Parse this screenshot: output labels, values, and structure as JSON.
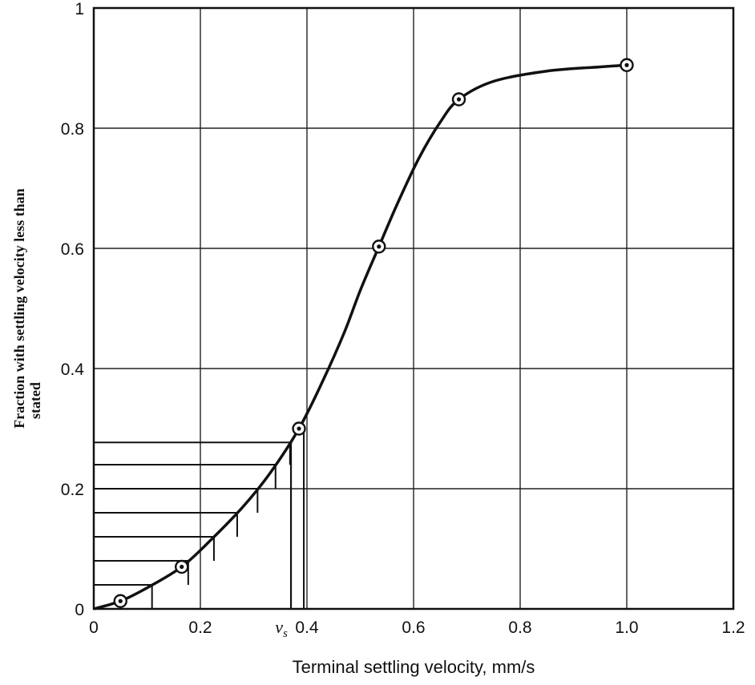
{
  "chart_data": {
    "type": "line",
    "xlabel": "Terminal settling velocity, mm/s",
    "ylabel_line1": "Fraction with settling velocity less than",
    "ylabel_line2": "stated",
    "xlim": [
      0,
      1.2
    ],
    "ylim": [
      0,
      1
    ],
    "x_ticks": [
      {
        "value": 0,
        "label": "0"
      },
      {
        "value": 0.2,
        "label": "0.2"
      },
      {
        "value": 0.4,
        "label": "0.4"
      },
      {
        "value": 0.6,
        "label": "0.6"
      },
      {
        "value": 0.8,
        "label": "0.8"
      },
      {
        "value": 1.0,
        "label": "1.0"
      },
      {
        "value": 1.2,
        "label": "1.2"
      }
    ],
    "y_ticks": [
      {
        "value": 0,
        "label": "0"
      },
      {
        "value": 0.2,
        "label": "0.2"
      },
      {
        "value": 0.4,
        "label": "0.4"
      },
      {
        "value": 0.6,
        "label": "0.6"
      },
      {
        "value": 0.8,
        "label": "0.8"
      },
      {
        "value": 1,
        "label": "1"
      }
    ],
    "grid": true,
    "vs_marker": {
      "value": 0.37,
      "label": "v",
      "subscript": "s"
    },
    "series": [
      {
        "points": [
          {
            "x": 0.05,
            "y": 0.013
          },
          {
            "x": 0.165,
            "y": 0.07
          },
          {
            "x": 0.385,
            "y": 0.3
          },
          {
            "x": 0.535,
            "y": 0.603
          },
          {
            "x": 0.685,
            "y": 0.848
          },
          {
            "x": 1.0,
            "y": 0.905
          }
        ],
        "curve": [
          [
            0.0,
            0.0
          ],
          [
            0.05,
            0.013
          ],
          [
            0.1,
            0.035
          ],
          [
            0.165,
            0.07
          ],
          [
            0.22,
            0.115
          ],
          [
            0.28,
            0.17
          ],
          [
            0.33,
            0.225
          ],
          [
            0.385,
            0.3
          ],
          [
            0.43,
            0.38
          ],
          [
            0.47,
            0.46
          ],
          [
            0.5,
            0.53
          ],
          [
            0.535,
            0.603
          ],
          [
            0.57,
            0.675
          ],
          [
            0.61,
            0.75
          ],
          [
            0.65,
            0.81
          ],
          [
            0.685,
            0.848
          ],
          [
            0.75,
            0.878
          ],
          [
            0.85,
            0.895
          ],
          [
            0.95,
            0.902
          ],
          [
            1.0,
            0.905
          ]
        ]
      }
    ],
    "step_fractions": [
      0.04,
      0.08,
      0.12,
      0.16,
      0.2,
      0.24,
      0.277
    ]
  }
}
